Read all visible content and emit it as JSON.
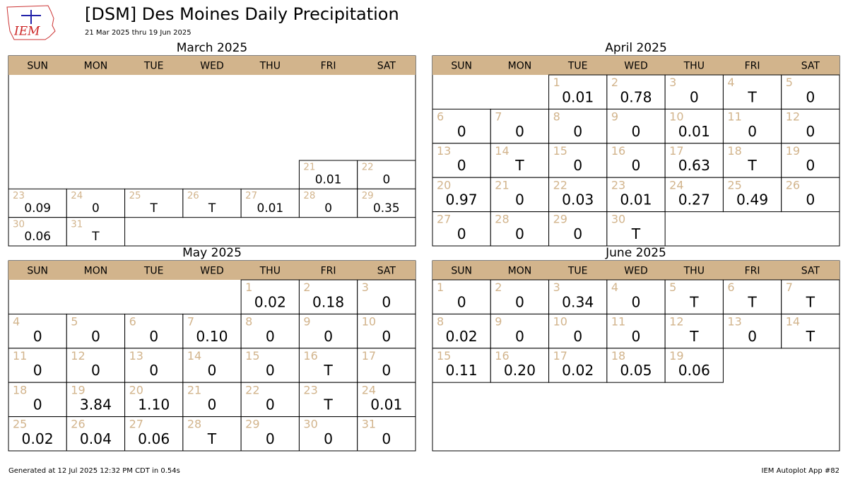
{
  "header": {
    "logo_text": "IEM",
    "title": "[DSM] Des Moines Daily Precipitation",
    "subtitle": "21 Mar 2025 thru 19 Jun 2025"
  },
  "months": [
    {
      "title": "March 2025",
      "weekdays": [
        "SUN",
        "MON",
        "TUE",
        "WED",
        "THU",
        "FRI",
        "SAT"
      ],
      "days": [
        {
          "day": 21,
          "value": "0.01"
        },
        {
          "day": 22,
          "value": "0"
        },
        {
          "day": 23,
          "value": "0.09"
        },
        {
          "day": 24,
          "value": "0"
        },
        {
          "day": 25,
          "value": "T"
        },
        {
          "day": 26,
          "value": "T"
        },
        {
          "day": 27,
          "value": "0.01"
        },
        {
          "day": 28,
          "value": "0"
        },
        {
          "day": 29,
          "value": "0.35"
        },
        {
          "day": 30,
          "value": "0.06"
        },
        {
          "day": 31,
          "value": "T"
        }
      ]
    },
    {
      "title": "April 2025",
      "weekdays": [
        "SUN",
        "MON",
        "TUE",
        "WED",
        "THU",
        "FRI",
        "SAT"
      ],
      "days": [
        {
          "day": 1,
          "value": "0.01"
        },
        {
          "day": 2,
          "value": "0.78"
        },
        {
          "day": 3,
          "value": "0"
        },
        {
          "day": 4,
          "value": "T"
        },
        {
          "day": 5,
          "value": "0"
        },
        {
          "day": 6,
          "value": "0"
        },
        {
          "day": 7,
          "value": "0"
        },
        {
          "day": 8,
          "value": "0"
        },
        {
          "day": 9,
          "value": "0"
        },
        {
          "day": 10,
          "value": "0.01"
        },
        {
          "day": 11,
          "value": "0"
        },
        {
          "day": 12,
          "value": "0"
        },
        {
          "day": 13,
          "value": "0"
        },
        {
          "day": 14,
          "value": "T"
        },
        {
          "day": 15,
          "value": "0"
        },
        {
          "day": 16,
          "value": "0"
        },
        {
          "day": 17,
          "value": "0.63"
        },
        {
          "day": 18,
          "value": "T"
        },
        {
          "day": 19,
          "value": "0"
        },
        {
          "day": 20,
          "value": "0.97"
        },
        {
          "day": 21,
          "value": "0"
        },
        {
          "day": 22,
          "value": "0.03"
        },
        {
          "day": 23,
          "value": "0.01"
        },
        {
          "day": 24,
          "value": "0.27"
        },
        {
          "day": 25,
          "value": "0.49"
        },
        {
          "day": 26,
          "value": "0"
        },
        {
          "day": 27,
          "value": "0"
        },
        {
          "day": 28,
          "value": "0"
        },
        {
          "day": 29,
          "value": "0"
        },
        {
          "day": 30,
          "value": "T"
        }
      ]
    },
    {
      "title": "May 2025",
      "weekdays": [
        "SUN",
        "MON",
        "TUE",
        "WED",
        "THU",
        "FRI",
        "SAT"
      ],
      "days": [
        {
          "day": 1,
          "value": "0.02"
        },
        {
          "day": 2,
          "value": "0.18"
        },
        {
          "day": 3,
          "value": "0"
        },
        {
          "day": 4,
          "value": "0"
        },
        {
          "day": 5,
          "value": "0"
        },
        {
          "day": 6,
          "value": "0"
        },
        {
          "day": 7,
          "value": "0.10"
        },
        {
          "day": 8,
          "value": "0"
        },
        {
          "day": 9,
          "value": "0"
        },
        {
          "day": 10,
          "value": "0"
        },
        {
          "day": 11,
          "value": "0"
        },
        {
          "day": 12,
          "value": "0"
        },
        {
          "day": 13,
          "value": "0"
        },
        {
          "day": 14,
          "value": "0"
        },
        {
          "day": 15,
          "value": "0"
        },
        {
          "day": 16,
          "value": "T"
        },
        {
          "day": 17,
          "value": "0"
        },
        {
          "day": 18,
          "value": "0"
        },
        {
          "day": 19,
          "value": "3.84"
        },
        {
          "day": 20,
          "value": "1.10"
        },
        {
          "day": 21,
          "value": "0"
        },
        {
          "day": 22,
          "value": "0"
        },
        {
          "day": 23,
          "value": "T"
        },
        {
          "day": 24,
          "value": "0.01"
        },
        {
          "day": 25,
          "value": "0.02"
        },
        {
          "day": 26,
          "value": "0.04"
        },
        {
          "day": 27,
          "value": "0.06"
        },
        {
          "day": 28,
          "value": "T"
        },
        {
          "day": 29,
          "value": "0"
        },
        {
          "day": 30,
          "value": "0"
        },
        {
          "day": 31,
          "value": "0"
        }
      ]
    },
    {
      "title": "June 2025",
      "weekdays": [
        "SUN",
        "MON",
        "TUE",
        "WED",
        "THU",
        "FRI",
        "SAT"
      ],
      "days": [
        {
          "day": 1,
          "value": "0"
        },
        {
          "day": 2,
          "value": "0"
        },
        {
          "day": 3,
          "value": "0.34"
        },
        {
          "day": 4,
          "value": "0"
        },
        {
          "day": 5,
          "value": "T"
        },
        {
          "day": 6,
          "value": "T"
        },
        {
          "day": 7,
          "value": "T"
        },
        {
          "day": 8,
          "value": "0.02"
        },
        {
          "day": 9,
          "value": "0"
        },
        {
          "day": 10,
          "value": "0"
        },
        {
          "day": 11,
          "value": "0"
        },
        {
          "day": 12,
          "value": "T"
        },
        {
          "day": 13,
          "value": "0"
        },
        {
          "day": 14,
          "value": "T"
        },
        {
          "day": 15,
          "value": "0.11"
        },
        {
          "day": 16,
          "value": "0.20"
        },
        {
          "day": 17,
          "value": "0.02"
        },
        {
          "day": 18,
          "value": "0.05"
        },
        {
          "day": 19,
          "value": "0.06"
        }
      ]
    }
  ],
  "footer": {
    "left": "Generated at 12 Jul 2025 12:32 PM CDT in 0.54s",
    "right": "IEM Autoplot App #82"
  }
}
